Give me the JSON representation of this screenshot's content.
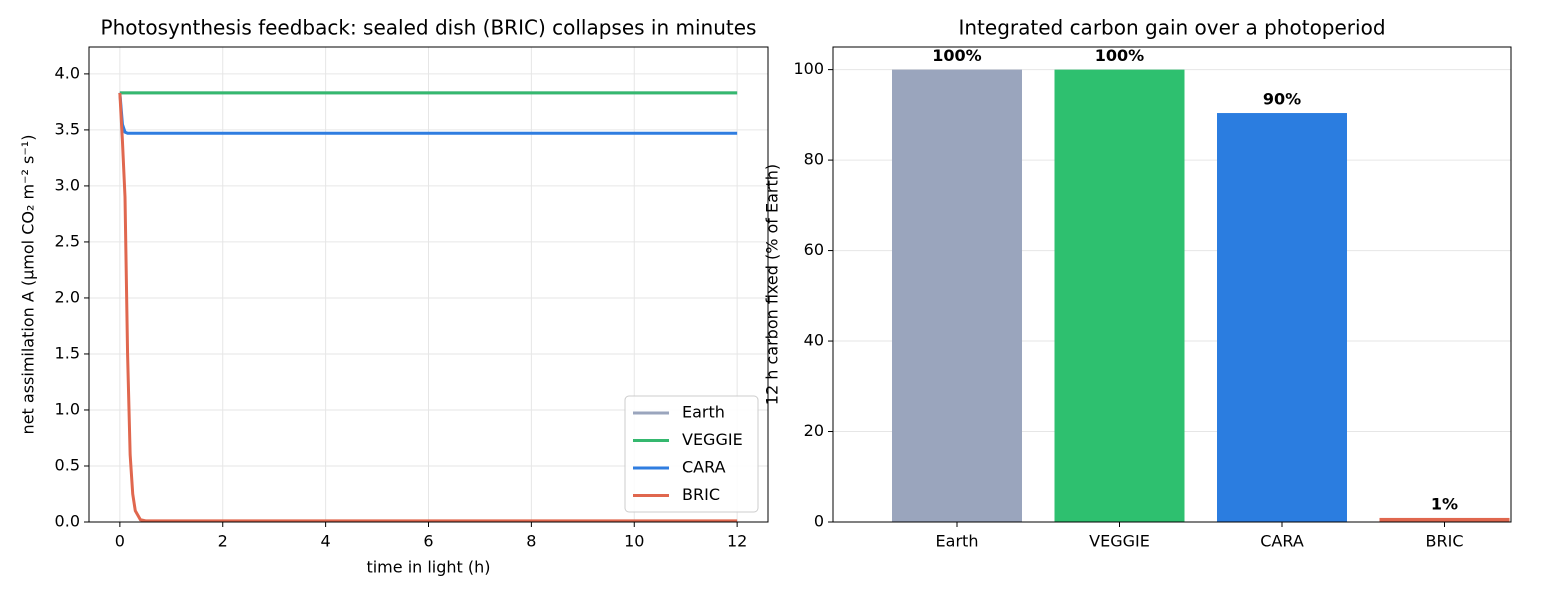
{
  "chart_data": [
    {
      "type": "line",
      "title": "Photosynthesis feedback: sealed dish (BRIC) collapses in minutes",
      "x_label": "time in light (h)",
      "y_label": "net assimilation A (μmol CO₂ m⁻² s⁻¹)",
      "x": [
        0,
        0.05,
        0.1,
        0.15,
        0.2,
        0.25,
        0.3,
        0.4,
        0.5,
        1,
        12
      ],
      "series": [
        {
          "name": "Earth",
          "color": "#9aa5bd",
          "values": [
            3.83,
            3.83,
            3.83,
            3.83,
            3.83,
            3.83,
            3.83,
            3.83,
            3.83,
            3.83,
            3.83
          ]
        },
        {
          "name": "VEGGIE",
          "color": "#35b86f",
          "values": [
            3.83,
            3.83,
            3.83,
            3.83,
            3.83,
            3.83,
            3.83,
            3.83,
            3.83,
            3.83,
            3.83
          ]
        },
        {
          "name": "CARA",
          "color": "#2f7de0",
          "values": [
            3.83,
            3.55,
            3.48,
            3.47,
            3.47,
            3.47,
            3.47,
            3.47,
            3.47,
            3.47,
            3.47
          ]
        },
        {
          "name": "BRIC",
          "color": "#e0674e",
          "values": [
            3.83,
            3.4,
            2.9,
            1.5,
            0.6,
            0.25,
            0.1,
            0.02,
            0.01,
            0.01,
            0.01
          ]
        }
      ],
      "xlim": [
        -0.6,
        12.6
      ],
      "xticks": [
        0,
        2,
        4,
        6,
        8,
        10,
        12
      ],
      "ylim": [
        0,
        4.24
      ],
      "yticks": [
        {
          "value": 0,
          "label": "0.0"
        },
        {
          "value": 0.5,
          "label": "0.5"
        },
        {
          "value": 1,
          "label": "1.0"
        },
        {
          "value": 1.5,
          "label": "1.5"
        },
        {
          "value": 2,
          "label": "2.0"
        },
        {
          "value": 2.5,
          "label": "2.5"
        },
        {
          "value": 3,
          "label": "3.0"
        },
        {
          "value": 3.5,
          "label": "3.5"
        },
        {
          "value": 4,
          "label": "4.0"
        }
      ],
      "grid": true,
      "legend": "lower right"
    },
    {
      "type": "bar",
      "title": "Integrated carbon gain over a photoperiod",
      "y_label": "12 h carbon fixed (% of Earth)",
      "categories": [
        "Earth",
        "VEGGIE",
        "CARA",
        "BRIC"
      ],
      "values": [
        100,
        100,
        90.4,
        0.9
      ],
      "value_labels": [
        "100%",
        "100%",
        "90%",
        "1%"
      ],
      "colors": [
        "#9aa5bd",
        "#2ec06f",
        "#2b7de0",
        "#e0674e"
      ],
      "ylim": [
        0,
        105
      ],
      "yticks": [
        0,
        20,
        40,
        60,
        80,
        100
      ],
      "grid": true
    }
  ]
}
